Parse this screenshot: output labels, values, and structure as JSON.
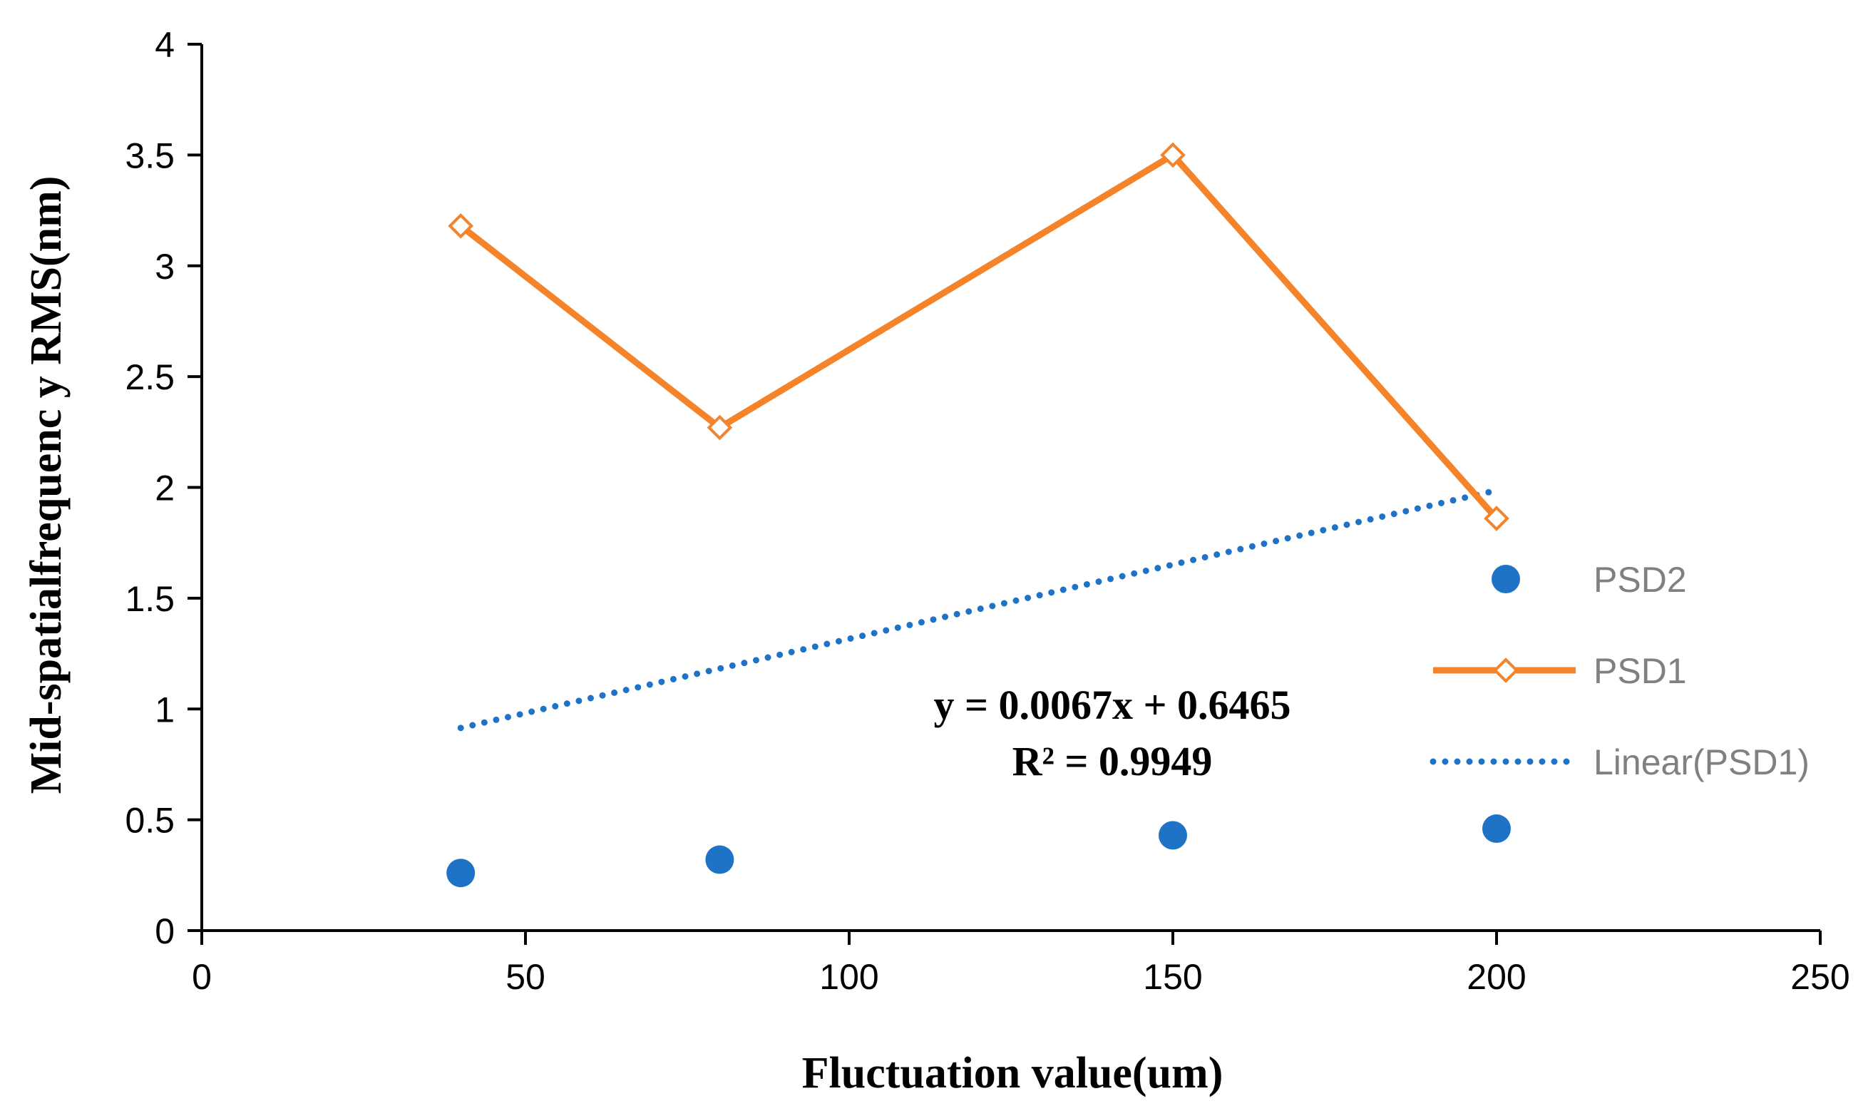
{
  "chart_data": {
    "type": "scatter",
    "title": "",
    "xlabel": "Fluctuation  value(um)",
    "ylabel": "Mid-spatialfrequenc y  RMS(nm)",
    "xlim": [
      0,
      250
    ],
    "ylim": [
      0,
      4
    ],
    "x_ticks": [
      "0",
      "50",
      "100",
      "150",
      "200",
      "250"
    ],
    "y_ticks": [
      "0",
      "0.5",
      "1",
      "1.5",
      "2",
      "2.5",
      "3",
      "3.5",
      "4"
    ],
    "grid": false,
    "legend_position": "right",
    "series": [
      {
        "name": "PSD2",
        "style": "markers",
        "color": "#1f73c6",
        "x": [
          40,
          80,
          150,
          200
        ],
        "y": [
          0.26,
          0.32,
          0.43,
          0.46
        ]
      },
      {
        "name": "PSD1",
        "style": "line-open-diamond",
        "color": "#f5832a",
        "x": [
          40,
          80,
          150,
          200
        ],
        "y": [
          3.18,
          2.27,
          3.5,
          1.86
        ]
      },
      {
        "name": "Linear(PSD1)",
        "style": "dotted-trendline",
        "color": "#1f73c6",
        "slope": 0.0067,
        "intercept": 0.6465,
        "x_range": [
          40,
          200
        ]
      }
    ],
    "annotations": [
      "y = 0.0067x + 0.6465",
      "R² = 0.9949"
    ]
  }
}
